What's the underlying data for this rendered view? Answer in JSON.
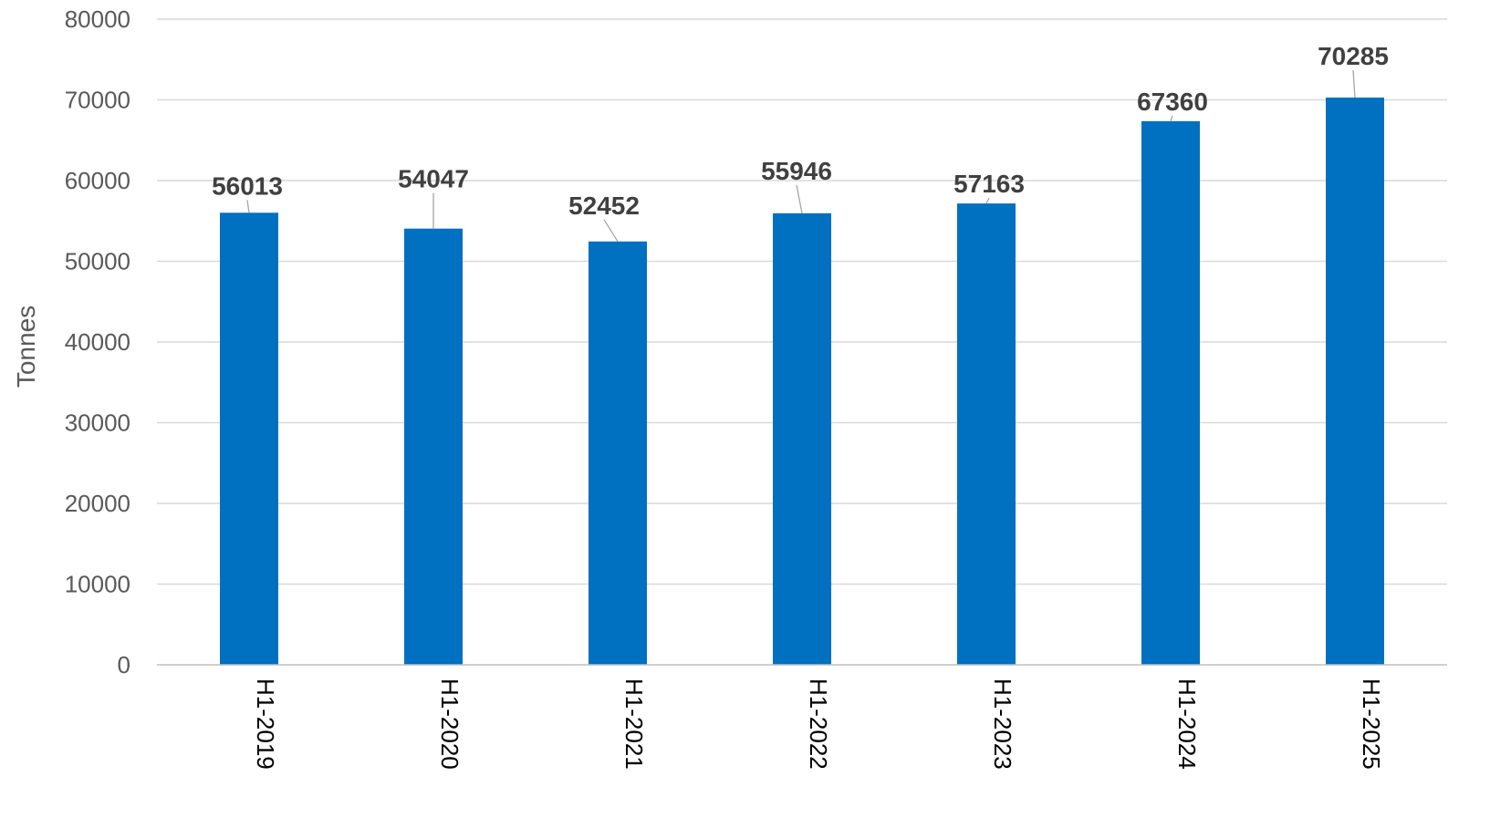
{
  "chart_data": {
    "type": "bar",
    "title": "",
    "xlabel": "",
    "ylabel": "Tonnes",
    "categories": [
      "H1-2019",
      "H1-2020",
      "H1-2021",
      "H1-2022",
      "H1-2023",
      "H1-2024",
      "H1-2025"
    ],
    "values": [
      56013,
      54047,
      52452,
      55946,
      57163,
      67360,
      70285
    ],
    "data_labels": [
      "56013",
      "54047",
      "52452",
      "55946",
      "57163",
      "67360",
      "70285"
    ],
    "ylim": [
      0,
      80000
    ],
    "yticks": [
      "0",
      "10000",
      "20000",
      "30000",
      "40000",
      "50000",
      "60000",
      "70000",
      "80000"
    ],
    "grid": true,
    "legend": "none",
    "colors": {
      "bar": "#0070C0",
      "grid": "#D9D9D9"
    }
  }
}
